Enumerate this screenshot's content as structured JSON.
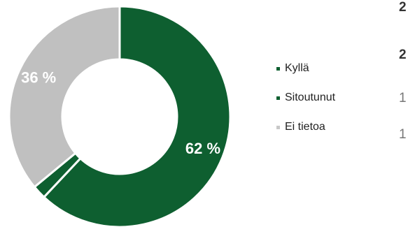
{
  "chart_data": {
    "type": "pie",
    "donut": true,
    "title": "",
    "labels": [
      "Kyllä",
      "Sitoutunut",
      "Ei tietoa"
    ],
    "values": [
      62,
      2,
      36
    ],
    "colors": [
      "#0e5f30",
      "#0e5f30",
      "#c0c0c0"
    ],
    "slice_labels": [
      "62 %",
      "",
      "36 %"
    ],
    "legend_position": "right"
  },
  "cut_off_text": [
    "2",
    "2",
    "1",
    "1"
  ]
}
